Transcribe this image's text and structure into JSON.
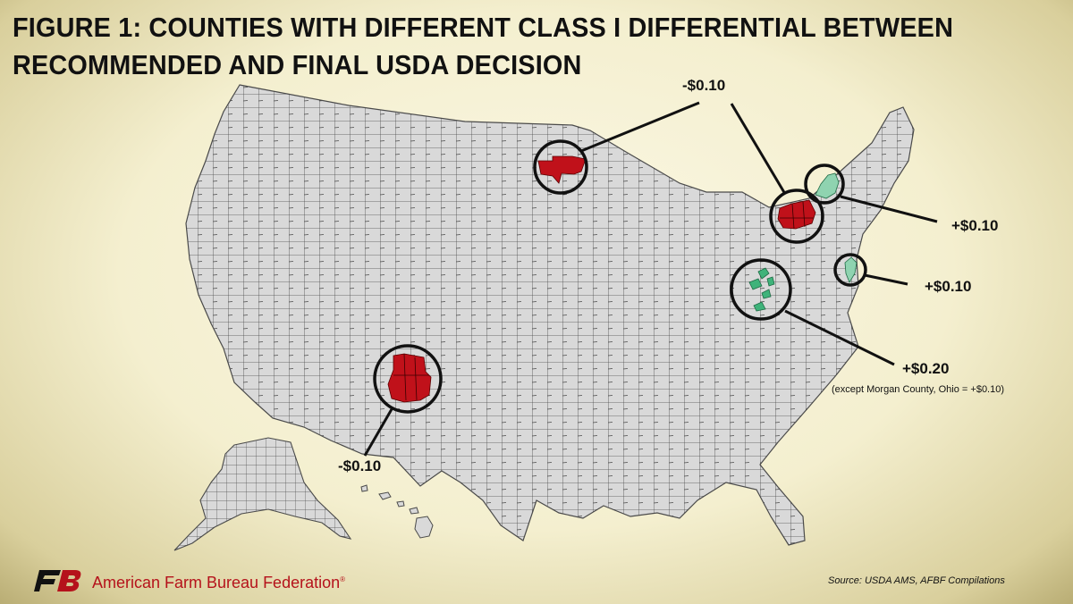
{
  "title": "FIGURE 1: COUNTIES WITH DIFFERENT CLASS I DIFFERENTIAL BETWEEN RECOMMENDED AND FINAL USDA DECISION",
  "colors": {
    "negative_change": "#c0111a",
    "positive_change": "#3fb37a",
    "positive_change_light": "#8fd3b0",
    "county_fill": "#d9d9d9",
    "county_border": "#4a4a4a",
    "brand_red": "#b5121b"
  },
  "callouts": [
    {
      "id": "north-dakota-minnesota",
      "label": "-$0.10",
      "change": "negative"
    },
    {
      "id": "western-new-york",
      "label": "-$0.10",
      "change": "negative"
    },
    {
      "id": "eastern-new-york",
      "label": "+$0.10",
      "change": "positive"
    },
    {
      "id": "new-jersey",
      "label": "+$0.10",
      "change": "positive"
    },
    {
      "id": "ohio-west-virginia",
      "label": "+$0.20",
      "note": "(except Morgan County, Ohio = +$0.10)",
      "change": "positive"
    },
    {
      "id": "new-mexico-colorado",
      "label": "-$0.10",
      "change": "negative"
    }
  ],
  "footer": {
    "organization": "American Farm Bureau Federation",
    "registered_mark": "®",
    "logo_text": "FB",
    "source": "Source: USDA AMS, AFBF Compilations"
  }
}
